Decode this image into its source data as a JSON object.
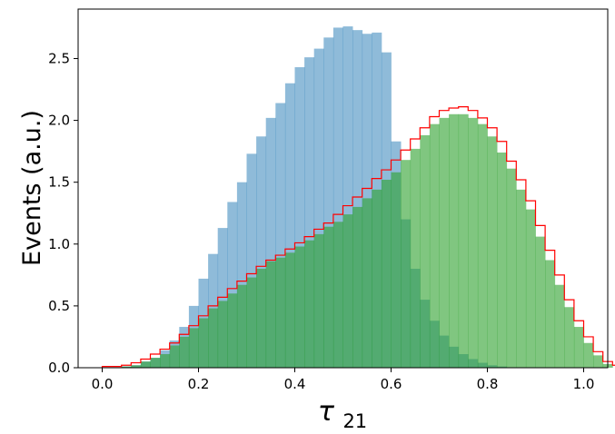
{
  "chart_data": {
    "type": "histogram",
    "xlabel_symbol": "τ",
    "xlabel_subscript": "21",
    "ylabel": "Events (a.u.)",
    "xlim": [
      -0.05,
      1.05
    ],
    "ylim": [
      0.0,
      2.9
    ],
    "xticks": [
      0.0,
      0.2,
      0.4,
      0.6,
      0.8,
      1.0
    ],
    "xtick_labels": [
      "0.0",
      "0.2",
      "0.4",
      "0.6",
      "0.8",
      "1.0"
    ],
    "yticks": [
      0.0,
      0.5,
      1.0,
      1.5,
      2.0,
      2.5
    ],
    "ytick_labels": [
      "0.0",
      "0.5",
      "1.0",
      "1.5",
      "2.0",
      "2.5"
    ],
    "bin_start": 0.0,
    "bin_width": 0.02,
    "series": [
      {
        "style": "filled",
        "color": "#1f77b4",
        "opacity": 0.5,
        "values": [
          0,
          0,
          0.01,
          0.02,
          0.05,
          0.08,
          0.14,
          0.22,
          0.33,
          0.5,
          0.72,
          0.92,
          1.13,
          1.34,
          1.5,
          1.73,
          1.87,
          2.02,
          2.14,
          2.3,
          2.43,
          2.51,
          2.58,
          2.67,
          2.75,
          2.76,
          2.73,
          2.7,
          2.71,
          2.55,
          1.83,
          1.2,
          0.8,
          0.55,
          0.38,
          0.26,
          0.17,
          0.11,
          0.07,
          0.04,
          0.02,
          0.01,
          0,
          0,
          0,
          0,
          0,
          0,
          0,
          0
        ]
      },
      {
        "style": "filled",
        "color": "#2ca02c",
        "opacity": 0.6,
        "values": [
          0,
          0,
          0.01,
          0.02,
          0.05,
          0.08,
          0.11,
          0.18,
          0.25,
          0.32,
          0.4,
          0.48,
          0.54,
          0.6,
          0.67,
          0.73,
          0.8,
          0.86,
          0.89,
          0.93,
          0.98,
          1.03,
          1.08,
          1.14,
          1.18,
          1.24,
          1.3,
          1.37,
          1.44,
          1.52,
          1.58,
          1.68,
          1.77,
          1.88,
          1.97,
          2.02,
          2.05,
          2.05,
          2.02,
          1.97,
          1.87,
          1.74,
          1.61,
          1.44,
          1.28,
          1.06,
          0.87,
          0.67,
          0.49,
          0.33,
          0.2,
          0.1,
          0.03
        ]
      },
      {
        "style": "step",
        "color": "#ff0000",
        "values": [
          0.01,
          0.01,
          0.02,
          0.04,
          0.07,
          0.11,
          0.15,
          0.2,
          0.27,
          0.34,
          0.42,
          0.5,
          0.57,
          0.64,
          0.7,
          0.76,
          0.82,
          0.87,
          0.91,
          0.96,
          1.01,
          1.06,
          1.12,
          1.17,
          1.24,
          1.31,
          1.38,
          1.45,
          1.53,
          1.6,
          1.68,
          1.76,
          1.85,
          1.94,
          2.03,
          2.08,
          2.1,
          2.11,
          2.08,
          2.02,
          1.94,
          1.83,
          1.67,
          1.52,
          1.35,
          1.15,
          0.95,
          0.75,
          0.55,
          0.38,
          0.25,
          0.13,
          0.05,
          0.02
        ]
      }
    ]
  }
}
